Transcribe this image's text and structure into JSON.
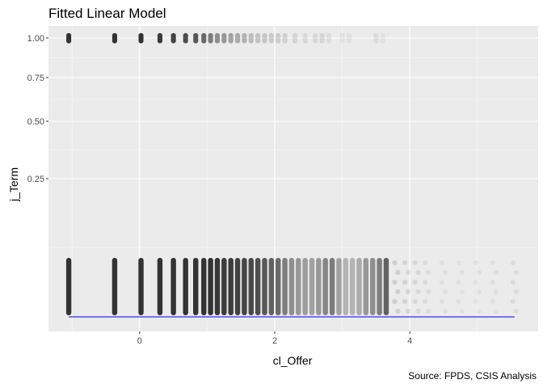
{
  "chart_data": {
    "type": "scatter",
    "title": "Fitted Linear Model",
    "xlabel": "cl_Offer",
    "ylabel": "j_Term",
    "caption": "Source: FPDS, CSIS Analysis",
    "xlim": [
      -1.35,
      5.9
    ],
    "x_ticks": [
      0,
      2,
      4
    ],
    "x_tick_labels": [
      "0",
      "2",
      "4"
    ],
    "y_ticks": [
      1.0,
      0.75,
      0.5,
      0.25
    ],
    "y_tick_labels": [
      "1.00",
      "0.75",
      "0.50",
      "0.25"
    ],
    "y_scale": "transformed",
    "grid": true,
    "point_color": "#333333",
    "line_color": "#0000cc",
    "panel_color": "#ebebeb",
    "fitted_line": {
      "x": [
        -1.05,
        5.55
      ],
      "y": [
        0.0,
        0.0
      ]
    },
    "series": [
      {
        "values_y": 1,
        "x": [
          -1.05,
          -0.37,
          0.02,
          0.3,
          0.5,
          0.68,
          0.83,
          0.95,
          1.05,
          1.15,
          1.25,
          1.35,
          1.45,
          1.55,
          1.65,
          1.75,
          1.85,
          1.95,
          2.05,
          2.15,
          2.3,
          2.45,
          2.6,
          2.7,
          2.8,
          3.0,
          3.1,
          3.5,
          3.6
        ],
        "opacity": [
          1.0,
          1.0,
          1.0,
          0.95,
          0.9,
          0.85,
          0.8,
          0.7,
          0.6,
          0.5,
          0.45,
          0.4,
          0.35,
          0.3,
          0.25,
          0.22,
          0.2,
          0.18,
          0.16,
          0.14,
          0.12,
          0.1,
          0.1,
          0.12,
          0.08,
          0.06,
          0.06,
          0.08,
          0.05
        ]
      },
      {
        "values_y": 0,
        "x": [
          -1.05,
          -0.37,
          0.02,
          0.3,
          0.5,
          0.68,
          0.83,
          0.95,
          1.05,
          1.15,
          1.25,
          1.35,
          1.45,
          1.55,
          1.65,
          1.75,
          1.85,
          1.95,
          2.05,
          2.15,
          2.25,
          2.35,
          2.45,
          2.55,
          2.65,
          2.75,
          2.85,
          2.95,
          3.05,
          3.15,
          3.25,
          3.35,
          3.45,
          3.55,
          3.65,
          3.8,
          3.95,
          4.1,
          4.25,
          4.5,
          4.75,
          5.0,
          5.25,
          5.55
        ],
        "opacity": [
          1.0,
          1.0,
          1.0,
          1.0,
          1.0,
          1.0,
          1.0,
          1.0,
          1.0,
          0.98,
          0.95,
          0.95,
          0.92,
          0.9,
          0.88,
          0.85,
          0.8,
          0.75,
          0.7,
          0.6,
          0.5,
          0.45,
          0.42,
          0.4,
          0.45,
          0.55,
          0.6,
          0.4,
          0.3,
          0.3,
          0.35,
          0.45,
          0.5,
          0.6,
          0.75,
          0.15,
          0.12,
          0.1,
          0.08,
          0.06,
          0.05,
          0.05,
          0.06,
          0.08
        ]
      }
    ]
  }
}
